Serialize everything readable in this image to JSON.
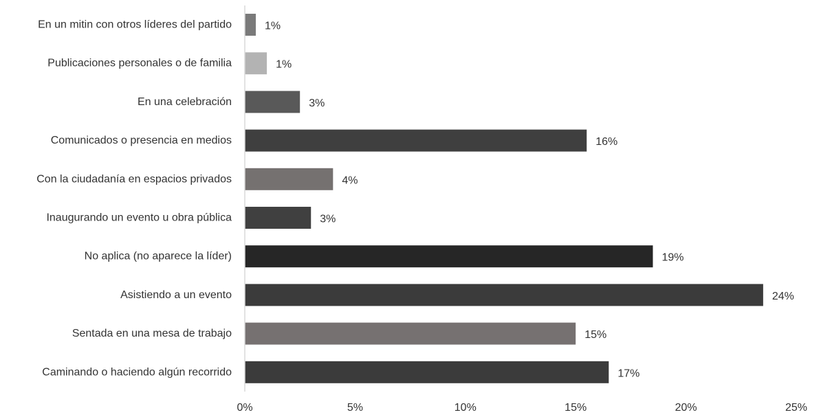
{
  "chart_data": {
    "type": "bar",
    "orientation": "horizontal",
    "title": "",
    "xlabel": "",
    "ylabel": "",
    "xlim": [
      0,
      25
    ],
    "grid": false,
    "legend": "none",
    "ticks": [
      "0%",
      "5%",
      "10%",
      "15%",
      "20%",
      "25%"
    ],
    "tick_values": [
      0,
      5,
      10,
      15,
      20,
      25
    ],
    "categories": [
      "En un mitin con otros líderes del partido",
      "Publicaciones personales o de familia",
      "En una celebración",
      "Comunicados o presencia en medios",
      "Con la ciudadanía en espacios privados",
      "Inaugurando un evento u obra pública",
      "No aplica (no aparece la líder)",
      "Asistiendo a un evento",
      "Sentada en una mesa de trabajo",
      "Caminando o haciendo algún recorrido"
    ],
    "values": [
      0.5,
      1,
      2.5,
      15.5,
      4,
      3,
      18.5,
      23.5,
      15,
      16.5
    ],
    "labels": [
      "1%",
      "1%",
      "3%",
      "16%",
      "4%",
      "3%",
      "19%",
      "24%",
      "15%",
      "17%"
    ],
    "colors": [
      "#7a7a7a",
      "#b3b3b3",
      "#595959",
      "#3f3f3f",
      "#757170",
      "#404040",
      "#262626",
      "#3b3b3b",
      "#767171",
      "#3b3b3b"
    ],
    "axis_color": "#d9d9d9"
  }
}
